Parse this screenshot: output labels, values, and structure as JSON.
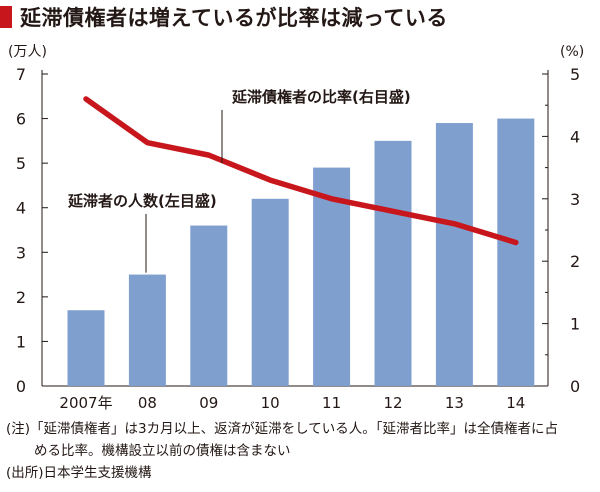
{
  "header": {
    "title": "延滞債権者は増えているが比率は減っている",
    "accent_color": "#c8161d"
  },
  "chart_data": {
    "type": "bar+line",
    "categories": [
      "2007年",
      "08",
      "09",
      "10",
      "11",
      "12",
      "13",
      "14"
    ],
    "series": [
      {
        "name": "延滞者の人数(左目盛)",
        "type": "bar",
        "axis": "left",
        "color": "#7f9fcf",
        "values": [
          1.7,
          2.5,
          3.6,
          4.2,
          4.9,
          5.5,
          5.9,
          6.0
        ]
      },
      {
        "name": "延滞債権者の比率(右目盛)",
        "type": "line",
        "axis": "right",
        "color": "#c8161d",
        "values": [
          4.6,
          3.9,
          3.7,
          3.3,
          3.0,
          2.8,
          2.6,
          2.3
        ]
      }
    ],
    "y_left": {
      "unit": "(万人)",
      "ylim": [
        0,
        7
      ],
      "ticks": [
        "0",
        "1",
        "2",
        "3",
        "4",
        "5",
        "6",
        "7"
      ]
    },
    "y_right": {
      "unit": "(%)",
      "ylim": [
        0,
        5
      ],
      "ticks": [
        "0",
        "1",
        "2",
        "3",
        "4",
        "5"
      ]
    },
    "grid": false
  },
  "notes": {
    "note_line1": "(注)「延滞債権者」は3カ月以上、返済が延滞をしている人。「延滞者比率」は全債権者に占",
    "note_line2": "める比率。機構設立以前の債権は含まない",
    "source": "(出所)日本学生支援機構"
  }
}
